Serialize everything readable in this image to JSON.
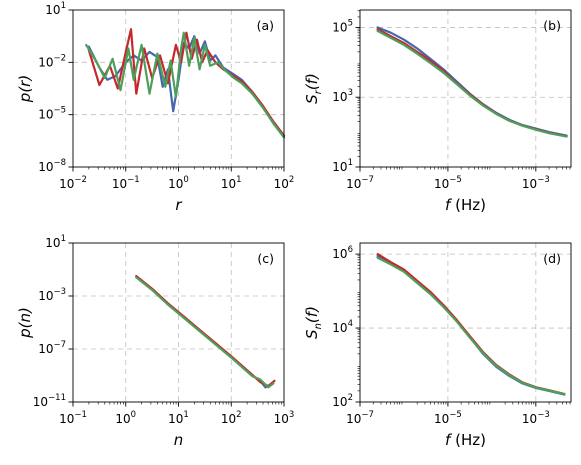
{
  "colors": {
    "blue": "#4468b0",
    "red": "#c4282c",
    "green": "#4ca05a"
  },
  "chart_data": [
    {
      "type": "line",
      "panel_label": "(a)",
      "xlabel": "r",
      "ylabel": "p(r)",
      "xscale": "log",
      "yscale": "log",
      "xlim_exp": [
        -2,
        2
      ],
      "ylim_exp": [
        -8,
        1
      ],
      "xticks_exp": [
        -2,
        -1,
        0,
        1,
        2
      ],
      "yticks_exp": [
        -8,
        -5,
        -2,
        1
      ],
      "tick_base": "10",
      "grid": true,
      "series": [
        {
          "color": "blue",
          "points": [
            [
              -1.7,
              -1.1
            ],
            [
              -1.5,
              -2.3
            ],
            [
              -1.35,
              -3.0
            ],
            [
              -1.2,
              -2.8
            ],
            [
              -1.0,
              -2.0
            ],
            [
              -0.85,
              -1.6
            ],
            [
              -0.7,
              -1.9
            ],
            [
              -0.55,
              -1.4
            ],
            [
              -0.4,
              -1.7
            ],
            [
              -0.3,
              -3.4
            ],
            [
              -0.2,
              -2.4
            ],
            [
              -0.1,
              -4.8
            ],
            [
              0.0,
              -3.0
            ],
            [
              0.1,
              -0.9
            ],
            [
              0.2,
              -1.2
            ],
            [
              0.3,
              -0.5
            ],
            [
              0.4,
              -1.5
            ],
            [
              0.5,
              -0.8
            ],
            [
              0.6,
              -1.9
            ],
            [
              0.7,
              -1.6
            ],
            [
              0.85,
              -2.3
            ],
            [
              1.0,
              -2.6
            ],
            [
              1.2,
              -3.0
            ],
            [
              1.4,
              -3.7
            ],
            [
              1.6,
              -4.5
            ],
            [
              1.8,
              -5.5
            ],
            [
              2.0,
              -6.3
            ]
          ]
        },
        {
          "color": "red",
          "points": [
            [
              -1.7,
              -1.3
            ],
            [
              -1.5,
              -3.3
            ],
            [
              -1.3,
              -2.2
            ],
            [
              -1.15,
              -3.5
            ],
            [
              -1.0,
              -1.4
            ],
            [
              -0.9,
              -0.1
            ],
            [
              -0.8,
              -3.8
            ],
            [
              -0.65,
              -1.2
            ],
            [
              -0.5,
              -2.9
            ],
            [
              -0.35,
              -1.6
            ],
            [
              -0.2,
              -3.2
            ],
            [
              -0.05,
              -1.0
            ],
            [
              0.05,
              -2.0
            ],
            [
              0.15,
              -0.3
            ],
            [
              0.25,
              -1.8
            ],
            [
              0.35,
              -0.7
            ],
            [
              0.45,
              -2.0
            ],
            [
              0.55,
              -1.3
            ],
            [
              0.7,
              -2.0
            ],
            [
              0.85,
              -2.4
            ],
            [
              1.0,
              -2.7
            ],
            [
              1.2,
              -3.1
            ],
            [
              1.4,
              -3.7
            ],
            [
              1.6,
              -4.5
            ],
            [
              1.8,
              -5.4
            ],
            [
              2.0,
              -6.2
            ]
          ]
        },
        {
          "color": "green",
          "points": [
            [
              -1.75,
              -1.0
            ],
            [
              -1.55,
              -2.0
            ],
            [
              -1.4,
              -2.9
            ],
            [
              -1.25,
              -1.8
            ],
            [
              -1.1,
              -3.6
            ],
            [
              -0.95,
              -1.2
            ],
            [
              -0.85,
              -3.0
            ],
            [
              -0.7,
              -1.0
            ],
            [
              -0.55,
              -3.8
            ],
            [
              -0.4,
              -1.5
            ],
            [
              -0.25,
              -3.4
            ],
            [
              -0.15,
              -1.9
            ],
            [
              -0.05,
              -4.0
            ],
            [
              0.05,
              -1.2
            ],
            [
              0.1,
              -0.3
            ],
            [
              0.2,
              -2.2
            ],
            [
              0.3,
              -0.6
            ],
            [
              0.4,
              -2.4
            ],
            [
              0.5,
              -1.0
            ],
            [
              0.6,
              -2.2
            ],
            [
              0.75,
              -2.0
            ],
            [
              0.9,
              -2.5
            ],
            [
              1.05,
              -2.9
            ],
            [
              1.2,
              -3.2
            ],
            [
              1.4,
              -3.8
            ],
            [
              1.6,
              -4.6
            ],
            [
              1.8,
              -5.5
            ],
            [
              2.0,
              -6.3
            ]
          ]
        }
      ]
    },
    {
      "type": "line",
      "panel_label": "(b)",
      "xlabel": "f",
      "xunit": " (Hz)",
      "ylabel": "S",
      "ylabel_sub": "r",
      "ylabel_tail": "(f)",
      "xscale": "log",
      "yscale": "log",
      "xlim_exp": [
        -7,
        -2.2
      ],
      "ylim_exp": [
        1,
        5.5
      ],
      "xticks_exp": [
        -7,
        -5,
        -3
      ],
      "yticks_exp": [
        1,
        3,
        5
      ],
      "tick_base": "10",
      "grid": true,
      "series": [
        {
          "color": "blue",
          "points": [
            [
              -6.6,
              5.0
            ],
            [
              -6.3,
              4.85
            ],
            [
              -6.0,
              4.65
            ],
            [
              -5.7,
              4.4
            ],
            [
              -5.4,
              4.1
            ],
            [
              -5.1,
              3.8
            ],
            [
              -4.8,
              3.45
            ],
            [
              -4.5,
              3.1
            ],
            [
              -4.2,
              2.8
            ],
            [
              -3.9,
              2.55
            ],
            [
              -3.6,
              2.35
            ],
            [
              -3.3,
              2.2
            ],
            [
              -3.0,
              2.1
            ],
            [
              -2.7,
              2.0
            ],
            [
              -2.3,
              1.9
            ]
          ]
        },
        {
          "color": "red",
          "points": [
            [
              -6.6,
              4.95
            ],
            [
              -6.3,
              4.75
            ],
            [
              -6.0,
              4.55
            ],
            [
              -5.7,
              4.3
            ],
            [
              -5.4,
              4.05
            ],
            [
              -5.1,
              3.75
            ],
            [
              -4.8,
              3.4
            ],
            [
              -4.5,
              3.08
            ],
            [
              -4.2,
              2.78
            ],
            [
              -3.9,
              2.53
            ],
            [
              -3.6,
              2.33
            ],
            [
              -3.3,
              2.19
            ],
            [
              -3.0,
              2.08
            ],
            [
              -2.7,
              1.98
            ],
            [
              -2.3,
              1.88
            ]
          ]
        },
        {
          "color": "green",
          "points": [
            [
              -6.6,
              4.9
            ],
            [
              -6.3,
              4.7
            ],
            [
              -6.0,
              4.5
            ],
            [
              -5.7,
              4.25
            ],
            [
              -5.4,
              3.98
            ],
            [
              -5.1,
              3.7
            ],
            [
              -4.8,
              3.38
            ],
            [
              -4.5,
              3.05
            ],
            [
              -4.2,
              2.76
            ],
            [
              -3.9,
              2.52
            ],
            [
              -3.6,
              2.32
            ],
            [
              -3.3,
              2.18
            ],
            [
              -3.0,
              2.07
            ],
            [
              -2.7,
              1.97
            ],
            [
              -2.3,
              1.87
            ]
          ]
        }
      ]
    },
    {
      "type": "line",
      "panel_label": "(c)",
      "xlabel": "n",
      "ylabel": "p(n)",
      "xscale": "log",
      "yscale": "log",
      "xlim_exp": [
        -1,
        3
      ],
      "ylim_exp": [
        -11,
        1
      ],
      "xticks_exp": [
        -1,
        0,
        1,
        2,
        3
      ],
      "yticks_exp": [
        -11,
        -7,
        -3,
        1
      ],
      "tick_base": "10",
      "grid": true,
      "series": [
        {
          "color": "blue",
          "points": [
            [
              0.2,
              -1.55
            ],
            [
              0.5,
              -2.5
            ],
            [
              0.8,
              -3.6
            ],
            [
              1.1,
              -4.6
            ],
            [
              1.4,
              -5.6
            ],
            [
              1.7,
              -6.6
            ],
            [
              2.0,
              -7.6
            ],
            [
              2.2,
              -8.3
            ],
            [
              2.4,
              -9.0
            ],
            [
              2.55,
              -9.4
            ],
            [
              2.65,
              -9.9
            ],
            [
              2.75,
              -9.7
            ]
          ]
        },
        {
          "color": "red",
          "points": [
            [
              0.2,
              -1.5
            ],
            [
              0.5,
              -2.45
            ],
            [
              0.8,
              -3.55
            ],
            [
              1.1,
              -4.55
            ],
            [
              1.4,
              -5.55
            ],
            [
              1.7,
              -6.55
            ],
            [
              2.0,
              -7.55
            ],
            [
              2.2,
              -8.25
            ],
            [
              2.4,
              -8.95
            ],
            [
              2.55,
              -9.5
            ],
            [
              2.7,
              -9.8
            ],
            [
              2.82,
              -9.4
            ]
          ]
        },
        {
          "color": "green",
          "points": [
            [
              0.2,
              -1.6
            ],
            [
              0.5,
              -2.55
            ],
            [
              0.8,
              -3.65
            ],
            [
              1.1,
              -4.65
            ],
            [
              1.4,
              -5.65
            ],
            [
              1.7,
              -6.65
            ],
            [
              2.0,
              -7.65
            ],
            [
              2.2,
              -8.35
            ],
            [
              2.4,
              -9.05
            ],
            [
              2.55,
              -9.3
            ],
            [
              2.7,
              -9.9
            ],
            [
              2.8,
              -9.6
            ]
          ]
        }
      ]
    },
    {
      "type": "line",
      "panel_label": "(d)",
      "xlabel": "f",
      "xunit": " (Hz)",
      "ylabel": "S",
      "ylabel_sub": "n",
      "ylabel_tail": "(f)",
      "xscale": "log",
      "yscale": "log",
      "xlim_exp": [
        -7,
        -2.2
      ],
      "ylim_exp": [
        2,
        6.3
      ],
      "xticks_exp": [
        -7,
        -5,
        -3
      ],
      "yticks_exp": [
        2,
        4,
        6
      ],
      "tick_base": "10",
      "grid": true,
      "series": [
        {
          "color": "blue",
          "points": [
            [
              -6.6,
              5.95
            ],
            [
              -6.3,
              5.75
            ],
            [
              -6.0,
              5.55
            ],
            [
              -5.7,
              5.25
            ],
            [
              -5.4,
              4.95
            ],
            [
              -5.1,
              4.6
            ],
            [
              -4.8,
              4.2
            ],
            [
              -4.5,
              3.75
            ],
            [
              -4.2,
              3.3
            ],
            [
              -3.9,
              2.95
            ],
            [
              -3.6,
              2.7
            ],
            [
              -3.3,
              2.5
            ],
            [
              -3.0,
              2.38
            ],
            [
              -2.7,
              2.3
            ],
            [
              -2.35,
              2.2
            ]
          ]
        },
        {
          "color": "red",
          "points": [
            [
              -6.6,
              6.0
            ],
            [
              -6.3,
              5.78
            ],
            [
              -6.0,
              5.58
            ],
            [
              -5.7,
              5.28
            ],
            [
              -5.4,
              4.98
            ],
            [
              -5.1,
              4.62
            ],
            [
              -4.8,
              4.22
            ],
            [
              -4.5,
              3.78
            ],
            [
              -4.2,
              3.35
            ],
            [
              -3.9,
              3.0
            ],
            [
              -3.6,
              2.74
            ],
            [
              -3.3,
              2.53
            ],
            [
              -3.0,
              2.4
            ],
            [
              -2.7,
              2.32
            ],
            [
              -2.35,
              2.22
            ]
          ]
        },
        {
          "color": "green",
          "points": [
            [
              -6.6,
              5.9
            ],
            [
              -6.3,
              5.72
            ],
            [
              -6.0,
              5.52
            ],
            [
              -5.7,
              5.22
            ],
            [
              -5.4,
              4.92
            ],
            [
              -5.1,
              4.57
            ],
            [
              -4.8,
              4.18
            ],
            [
              -4.5,
              3.74
            ],
            [
              -4.2,
              3.32
            ],
            [
              -3.9,
              2.98
            ],
            [
              -3.6,
              2.72
            ],
            [
              -3.3,
              2.52
            ],
            [
              -3.0,
              2.39
            ],
            [
              -2.7,
              2.31
            ],
            [
              -2.35,
              2.21
            ]
          ]
        }
      ]
    }
  ]
}
